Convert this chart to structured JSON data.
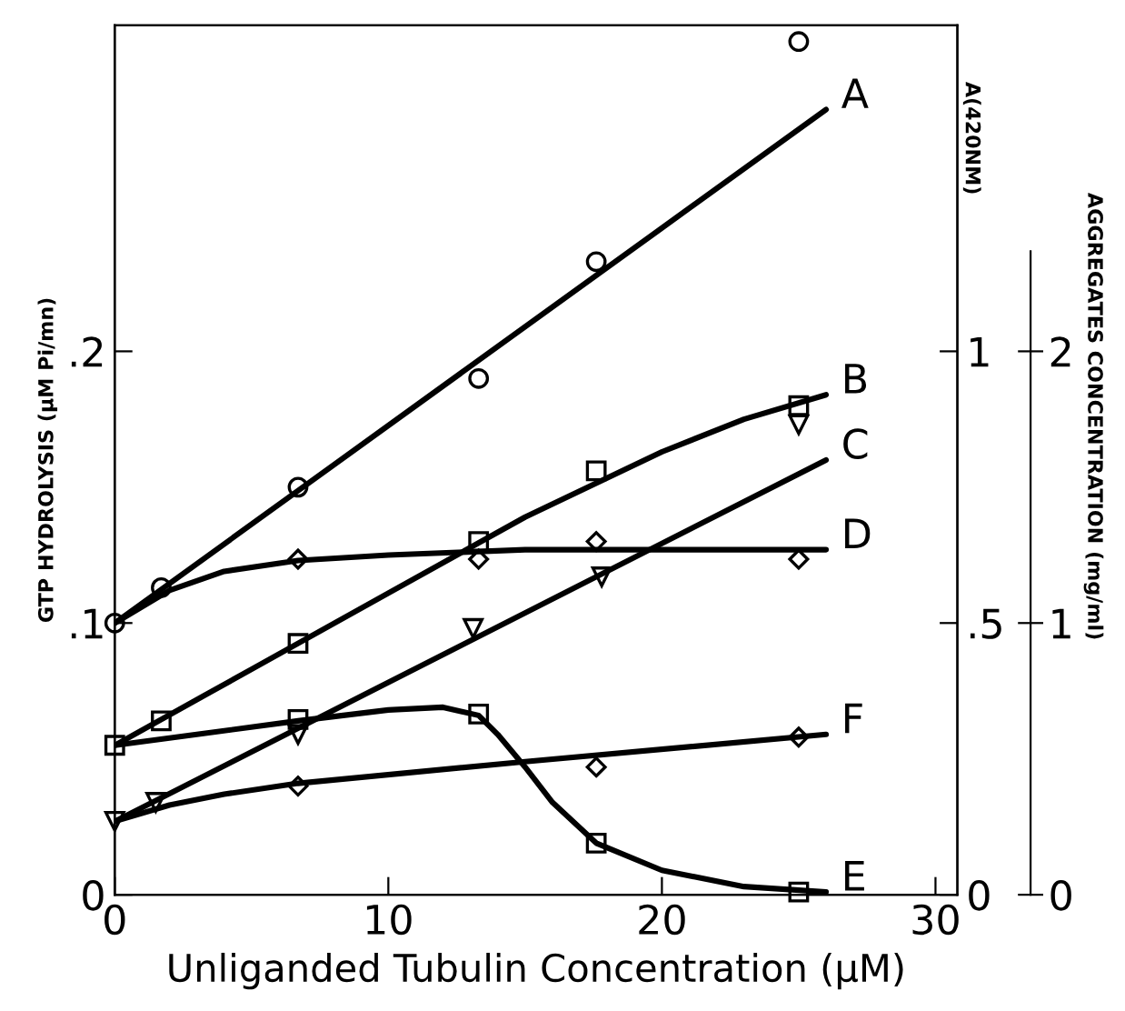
{
  "chart_data": {
    "type": "line",
    "xlabel": "Unliganded Tubulin Concentration (μM)",
    "ylabel": "GTP HYDROLYSIS (μM Pi/mn)",
    "y2label": "A(420NM)",
    "y3label": "AGGREGATES CONCENTRATION (mg/ml)",
    "xlim": [
      0,
      30.8
    ],
    "xticks": [
      0,
      10,
      20,
      30
    ],
    "ylim": [
      0,
      0.32
    ],
    "yticks": [
      0,
      {
        "value": 0.1,
        "label": ".1"
      },
      {
        "value": 0.2,
        "label": ".2"
      }
    ],
    "y2lim": [
      0,
      1.6
    ],
    "y2ticks": [
      0,
      {
        "value": 0.5,
        "label": ".5"
      },
      1
    ],
    "y3lim": [
      0,
      3.2
    ],
    "y3ticks": [
      0,
      1,
      2
    ],
    "grid": false,
    "legend": false,
    "series": [
      {
        "name": "A",
        "type": "line",
        "color": "#000000",
        "x": [
          0,
          26
        ],
        "values": [
          0.1,
          0.289
        ]
      },
      {
        "name": "B",
        "type": "line",
        "color": "#000000",
        "x": [
          0,
          5,
          10,
          15,
          20,
          23,
          26
        ],
        "values": [
          0.055,
          0.083,
          0.111,
          0.139,
          0.163,
          0.175,
          0.184
        ]
      },
      {
        "name": "C",
        "type": "line",
        "color": "#000000",
        "x": [
          0,
          26
        ],
        "values": [
          0.027,
          0.16
        ]
      },
      {
        "name": "D",
        "type": "line",
        "color": "#000000",
        "x": [
          0,
          2,
          4,
          6.7,
          10,
          15,
          26
        ],
        "values": [
          0.1,
          0.112,
          0.119,
          0.123,
          0.125,
          0.127,
          0.127
        ]
      },
      {
        "name": "F",
        "type": "line",
        "color": "#000000",
        "x": [
          0,
          2,
          4,
          6.7,
          15,
          26
        ],
        "values": [
          0.027,
          0.033,
          0.037,
          0.041,
          0.049,
          0.059
        ]
      },
      {
        "name": "E",
        "type": "line",
        "color": "#000000",
        "x": [
          0,
          3,
          6.7,
          10,
          12,
          13.3,
          14,
          15,
          16,
          17.6,
          20,
          23,
          26
        ],
        "values": [
          0.055,
          0.059,
          0.064,
          0.068,
          0.069,
          0.066,
          0.059,
          0.047,
          0.034,
          0.019,
          0.009,
          0.003,
          0.001
        ]
      },
      {
        "type": "scatter",
        "marker": "circle",
        "color": "#000000",
        "x": [
          0,
          1.7,
          6.7,
          13.3,
          17.6,
          25
        ],
        "values": [
          0.1,
          0.113,
          0.15,
          0.19,
          0.233,
          0.314
        ]
      },
      {
        "type": "scatter",
        "marker": "square",
        "color": "#000000",
        "x": [
          0,
          1.7,
          6.7,
          13.3,
          17.6,
          25
        ],
        "values": [
          0.055,
          0.064,
          0.0925,
          0.13,
          0.156,
          0.18
        ]
      },
      {
        "type": "scatter",
        "marker": "triangle",
        "color": "#000000",
        "x": [
          0,
          1.5,
          6.7,
          13.1,
          17.8,
          25
        ],
        "values": [
          0.027,
          0.034,
          0.059,
          0.098,
          0.117,
          0.173
        ]
      },
      {
        "type": "scatter",
        "marker": "diamond",
        "color": "#000000",
        "x": [
          6.7,
          13.3,
          17.6,
          25
        ],
        "values": [
          0.1235,
          0.1235,
          0.13,
          0.1235
        ]
      },
      {
        "type": "scatter",
        "marker": "diamond",
        "color": "#000000",
        "x": [
          6.7,
          17.6,
          25
        ],
        "values": [
          0.04,
          0.047,
          0.058
        ]
      },
      {
        "type": "scatter",
        "marker": "square",
        "color": "#000000",
        "x": [
          6.7,
          13.3,
          17.6,
          25
        ],
        "values": [
          0.0645,
          0.0665,
          0.019,
          0.001
        ]
      }
    ]
  }
}
